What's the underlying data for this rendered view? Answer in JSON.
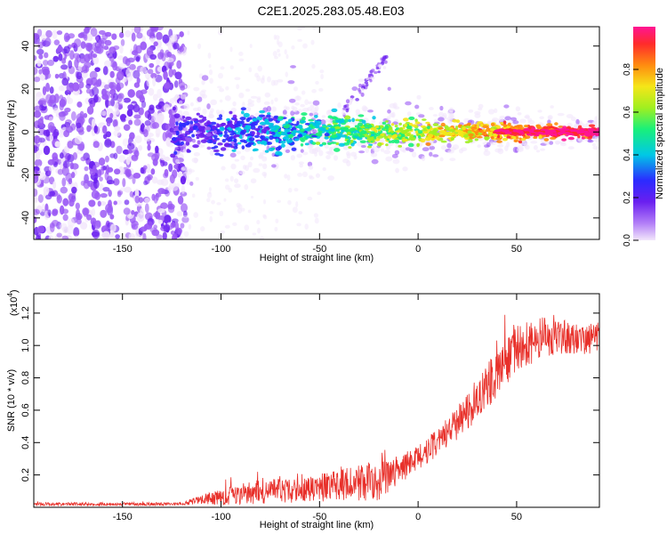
{
  "title": "C2E1.2025.283.05.48.E03",
  "chart_data": [
    {
      "type": "heatmap",
      "title": "C2E1.2025.283.05.48.E03",
      "xlabel": "Height of straight line (km)",
      "ylabel": "Frequency (Hz)",
      "xlim": [
        -195,
        92
      ],
      "ylim": [
        -50,
        49
      ],
      "xticks": [
        -150,
        -100,
        -50,
        0,
        50
      ],
      "yticks": [
        -40,
        -20,
        0,
        20,
        40
      ],
      "xtick_labels": [
        "-150",
        "-100",
        "-50",
        "0",
        "50"
      ],
      "ytick_labels": [
        "-40",
        "-20",
        "0",
        "20",
        "40"
      ],
      "colorbar": {
        "label": "Normalized spectral amplitude",
        "range": [
          0,
          1
        ],
        "ticks": [
          0.0,
          0.2,
          0.4,
          0.6,
          0.8
        ],
        "tick_labels": [
          "0.0",
          "0.2",
          "0.4",
          "0.6",
          "0.8"
        ]
      },
      "features": {
        "noise_region_x": [
          -195,
          -118
        ],
        "signal_trace_x": [
          -125,
          92
        ],
        "signal_trace_freq_hz": 0,
        "side_trace": {
          "x": [
            -38,
            -15
          ],
          "freq_hz": [
            10,
            36
          ]
        }
      }
    },
    {
      "type": "line",
      "xlabel": "Height of straight line (km)",
      "ylabel": "SNR (10 * v/v)",
      "y_scale_label": "(x10",
      "y_scale_exponent": "4",
      "y_scale_close": ")",
      "xlim": [
        -195,
        92
      ],
      "ylim": [
        0,
        1.32
      ],
      "xticks": [
        -150,
        -100,
        -50,
        0,
        50
      ],
      "yticks": [
        0.2,
        0.4,
        0.6,
        0.8,
        1.0,
        1.2
      ],
      "xtick_labels": [
        "-150",
        "-100",
        "-50",
        "0",
        "50"
      ],
      "ytick_labels": [
        "0.2",
        "0.4",
        "0.6",
        "0.8",
        "1.0",
        "1.2"
      ],
      "series": [
        {
          "name": "SNR",
          "color": "#e8302a",
          "trend_x": [
            -195,
            -120,
            -110,
            -100,
            -80,
            -60,
            -40,
            -20,
            -10,
            0,
            10,
            20,
            30,
            40,
            50,
            60,
            70,
            80,
            92
          ],
          "trend_y": [
            0.02,
            0.02,
            0.05,
            0.06,
            0.1,
            0.1,
            0.14,
            0.16,
            0.22,
            0.3,
            0.4,
            0.52,
            0.68,
            0.82,
            0.98,
            1.04,
            1.06,
            1.04,
            1.05
          ],
          "noise_amp": [
            0.01,
            0.01,
            0.03,
            0.05,
            0.08,
            0.07,
            0.1,
            0.12,
            0.1,
            0.08,
            0.09,
            0.1,
            0.14,
            0.14,
            0.14,
            0.14,
            0.11,
            0.1,
            0.1
          ]
        }
      ]
    }
  ],
  "colors": {
    "axis": "#000000",
    "series": "#e8302a",
    "colormap": [
      "#f2e6fb",
      "#9b59f5",
      "#6a1ff0",
      "#2b2bff",
      "#00c8e6",
      "#19f07a",
      "#a0ef20",
      "#f5e618",
      "#ff8c10",
      "#ff2b2b",
      "#ff1493"
    ]
  }
}
